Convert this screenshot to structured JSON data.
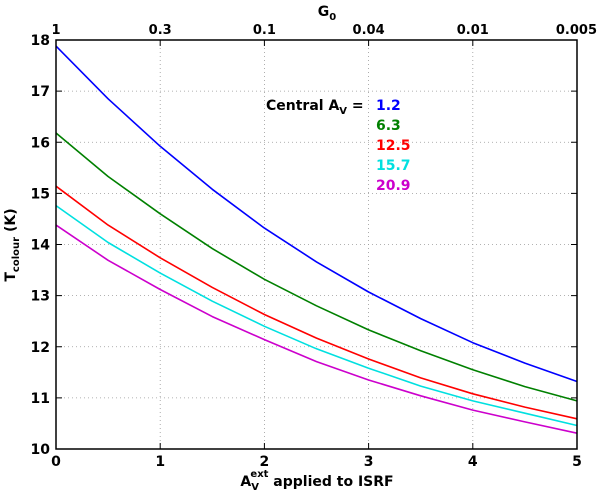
{
  "chart_data": {
    "type": "line",
    "title": "",
    "xlabel": {
      "main": "A",
      "sub": "V",
      "sup": "ext",
      "rest": " applied to ISRF"
    },
    "ylabel": {
      "main": "T",
      "sub": "colour",
      "rest": " (K)"
    },
    "top_axis_label": {
      "main": "G",
      "sub": "0"
    },
    "xlim": [
      0,
      5
    ],
    "ylim": [
      10,
      18
    ],
    "x_ticks": [
      0,
      1,
      2,
      3,
      4,
      5
    ],
    "x_tick_labels": [
      "0",
      "1",
      "2",
      "3",
      "4",
      "5"
    ],
    "y_ticks": [
      10,
      11,
      12,
      13,
      14,
      15,
      16,
      17,
      18
    ],
    "y_tick_labels": [
      "10",
      "11",
      "12",
      "13",
      "14",
      "15",
      "16",
      "17",
      "18"
    ],
    "top_ticks": [
      0,
      1,
      2,
      3,
      4,
      5
    ],
    "top_tick_labels": [
      "1",
      "0.3",
      "0.1",
      "0.04",
      "0.01",
      "0.005"
    ],
    "grid": true,
    "legend": {
      "title": {
        "main": "Central A",
        "sub": "V",
        "rest": " = "
      },
      "placement": "top-right"
    },
    "x": [
      0,
      0.5,
      1,
      1.5,
      2,
      2.5,
      3,
      3.5,
      4,
      4.5,
      5
    ],
    "series": [
      {
        "name": "1.2",
        "color": "#0000ff",
        "values": [
          17.88,
          16.85,
          15.92,
          15.08,
          14.32,
          13.66,
          13.07,
          12.55,
          12.08,
          11.68,
          11.32
        ]
      },
      {
        "name": "6.3",
        "color": "#008000",
        "values": [
          16.18,
          15.33,
          14.6,
          13.92,
          13.32,
          12.8,
          12.33,
          11.92,
          11.55,
          11.22,
          10.94
        ]
      },
      {
        "name": "12.5",
        "color": "#ff0000",
        "values": [
          15.14,
          14.38,
          13.74,
          13.16,
          12.63,
          12.17,
          11.76,
          11.39,
          11.08,
          10.82,
          10.59
        ]
      },
      {
        "name": "15.7",
        "color": "#00e0e0",
        "values": [
          14.76,
          14.04,
          13.44,
          12.89,
          12.4,
          11.96,
          11.58,
          11.23,
          10.94,
          10.7,
          10.46
        ]
      },
      {
        "name": "20.9",
        "color": "#cc00cc",
        "values": [
          14.38,
          13.69,
          13.12,
          12.59,
          12.14,
          11.71,
          11.35,
          11.04,
          10.76,
          10.53,
          10.31
        ]
      }
    ]
  }
}
